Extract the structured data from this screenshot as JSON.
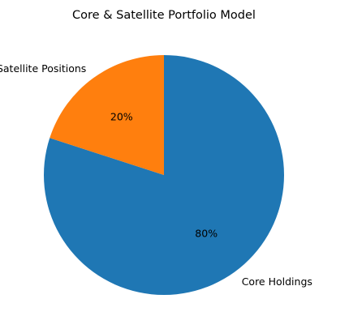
{
  "chart_data": {
    "type": "pie",
    "title": "Core & Satellite Portfolio Model",
    "slices": [
      {
        "label": "Core Holdings",
        "value": 80,
        "pct_label": "80%",
        "color": "#1f77b4"
      },
      {
        "label": "Satellite Positions",
        "value": 20,
        "pct_label": "20%",
        "color": "#ff7f0e"
      }
    ],
    "start_angle_deg": 90,
    "direction": "clockwise",
    "legend": "none"
  }
}
